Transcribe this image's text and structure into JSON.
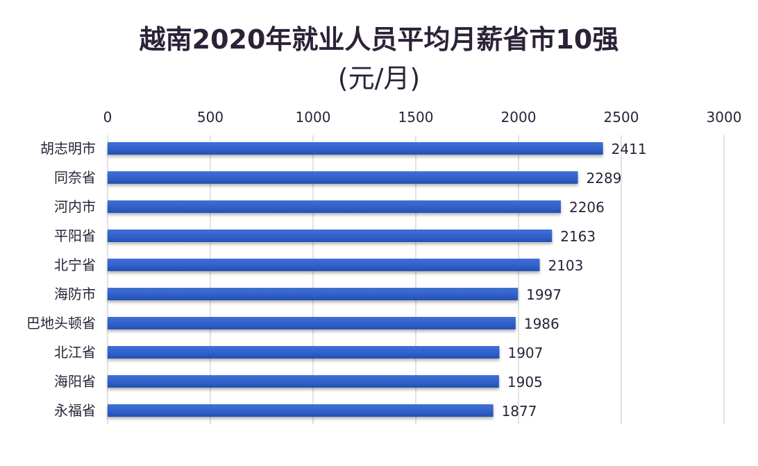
{
  "chart_data": {
    "type": "bar",
    "orientation": "horizontal",
    "title": "越南2020年就业人员平均月薪省市10强",
    "subtitle": "(元/月)",
    "categories": [
      "胡志明市",
      "同奈省",
      "河内市",
      "平阳省",
      "北宁省",
      "海防市",
      "巴地头顿省",
      "北江省",
      "海阳省",
      "永福省"
    ],
    "values": [
      2411,
      2289,
      2206,
      2163,
      2103,
      1997,
      1986,
      1907,
      1905,
      1877
    ],
    "xlim": [
      0,
      3000
    ],
    "xticks": [
      0,
      500,
      1000,
      1500,
      2000,
      2500,
      3000
    ],
    "xaxis_position": "top",
    "grid": true,
    "data_labels": true,
    "bar_color": "#2f5fc8"
  }
}
